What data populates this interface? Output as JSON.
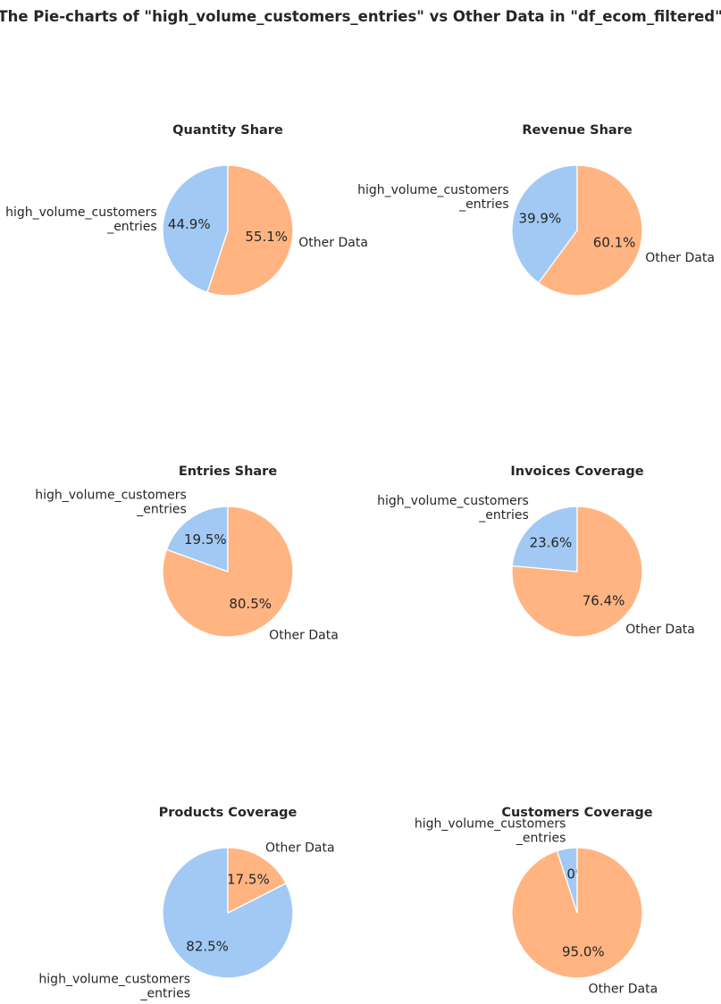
{
  "title": "The Pie-charts of \"high_volume_customers_entries\" vs Other Data in \"df_ecom_filtered\"",
  "colors": {
    "high_volume": "#a1c9f4",
    "other": "#ffb482",
    "edge": "#ffffff",
    "text": "#262626"
  },
  "chart_data": [
    {
      "type": "pie",
      "title": "Quantity Share",
      "labels": [
        "high_volume_customers_entries",
        "Other Data"
      ],
      "label_lines": [
        [
          "high_volume_customers",
          "_entries"
        ],
        [
          "Other Data"
        ]
      ],
      "values": [
        44.9,
        55.1
      ],
      "pct_labels": [
        "44.9%",
        "55.1%"
      ]
    },
    {
      "type": "pie",
      "title": "Revenue Share",
      "labels": [
        "high_volume_customers_entries",
        "Other Data"
      ],
      "label_lines": [
        [
          "high_volume_customers",
          "_entries"
        ],
        [
          "Other Data"
        ]
      ],
      "values": [
        39.9,
        60.1
      ],
      "pct_labels": [
        "39.9%",
        "60.1%"
      ]
    },
    {
      "type": "pie",
      "title": "Entries Share",
      "labels": [
        "high_volume_customers_entries",
        "Other Data"
      ],
      "label_lines": [
        [
          "high_volume_customers",
          "_entries"
        ],
        [
          "Other Data"
        ]
      ],
      "values": [
        19.5,
        80.5
      ],
      "pct_labels": [
        "19.5%",
        "80.5%"
      ]
    },
    {
      "type": "pie",
      "title": "Invoices Coverage",
      "labels": [
        "high_volume_customers_entries",
        "Other Data"
      ],
      "label_lines": [
        [
          "high_volume_customers",
          "_entries"
        ],
        [
          "Other Data"
        ]
      ],
      "values": [
        23.6,
        76.4
      ],
      "pct_labels": [
        "23.6%",
        "76.4%"
      ]
    },
    {
      "type": "pie",
      "title": "Products Coverage",
      "labels": [
        "high_volume_customers_entries",
        "Other Data"
      ],
      "label_lines": [
        [
          "high_volume_customers",
          "_entries"
        ],
        [
          "Other Data"
        ]
      ],
      "values": [
        82.5,
        17.5
      ],
      "pct_labels": [
        "82.5%",
        "17.5%"
      ]
    },
    {
      "type": "pie",
      "title": "Customers Coverage",
      "labels": [
        "high_volume_customers_entries",
        "Other Data"
      ],
      "label_lines": [
        [
          "high_volume_customers",
          "_entries"
        ],
        [
          "Other Data"
        ]
      ],
      "values": [
        5.0,
        95.0
      ],
      "pct_labels": [
        "5.0%",
        "95.0%"
      ]
    }
  ]
}
